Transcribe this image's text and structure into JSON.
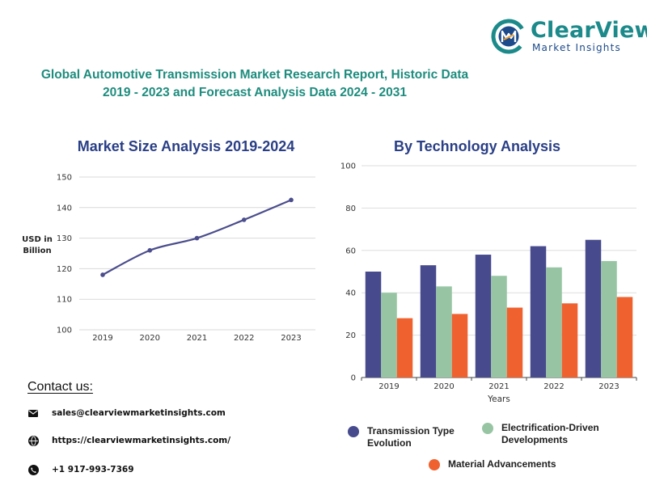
{
  "brand": {
    "name": "ClearView",
    "tagline": "Market Insights"
  },
  "report_title_line1": "Global Automotive Transmission Market Research Report, Historic Data",
  "report_title_line2": "2019 - 2023 and Forecast Analysis Data 2024 - 2031",
  "colors": {
    "title_teal": "#1e8c7e",
    "chart_title_blue": "#2a3f86",
    "line": "#4b4d8c",
    "series1": "#474a8c",
    "series2": "#97c5a4",
    "series3": "#f06130"
  },
  "contact": {
    "heading": "Contact us:",
    "items": [
      {
        "icon": "email-icon",
        "text": "sales@clearviewmarketinsights.com"
      },
      {
        "icon": "globe-icon",
        "text": "https://clearviewmarketinsights.com/"
      },
      {
        "icon": "phone-icon",
        "text": "+1 917-993-7369"
      }
    ]
  },
  "chart_data": [
    {
      "type": "line",
      "title": "Market Size Analysis 2019-2024",
      "ylabel_line1": "USD in",
      "ylabel_line2": "Billion",
      "xlabel": "",
      "x": [
        "2019",
        "2020",
        "2021",
        "2022",
        "2023"
      ],
      "values": [
        118,
        126,
        130,
        136,
        142.5
      ],
      "ylim": [
        100,
        150
      ],
      "yticks": [
        "100",
        "110",
        "120",
        "130",
        "140",
        "150"
      ],
      "grid": true,
      "smooth": true
    },
    {
      "type": "bar",
      "title": "By Technology Analysis",
      "xlabel": "Years",
      "ylabel": "",
      "categories": [
        "2019",
        "2020",
        "2021",
        "2022",
        "2023"
      ],
      "ylim": [
        0,
        100
      ],
      "yticks": [
        "0",
        "20",
        "40",
        "60",
        "80",
        "100"
      ],
      "grid": true,
      "legend_position": "bottom",
      "series": [
        {
          "name": "Transmission Type Evolution",
          "label_line1": "Transmission Type",
          "label_line2": "Evolution",
          "values": [
            50,
            53,
            58,
            62,
            65
          ]
        },
        {
          "name": "Electrification-Driven Developments",
          "label_line1": "Electrification-Driven",
          "label_line2": "Developments",
          "values": [
            40,
            43,
            48,
            52,
            55
          ]
        },
        {
          "name": "Material Advancements",
          "label_line1": "Material Advancements",
          "label_line2": "",
          "values": [
            28,
            30,
            33,
            35,
            38
          ]
        }
      ]
    }
  ]
}
